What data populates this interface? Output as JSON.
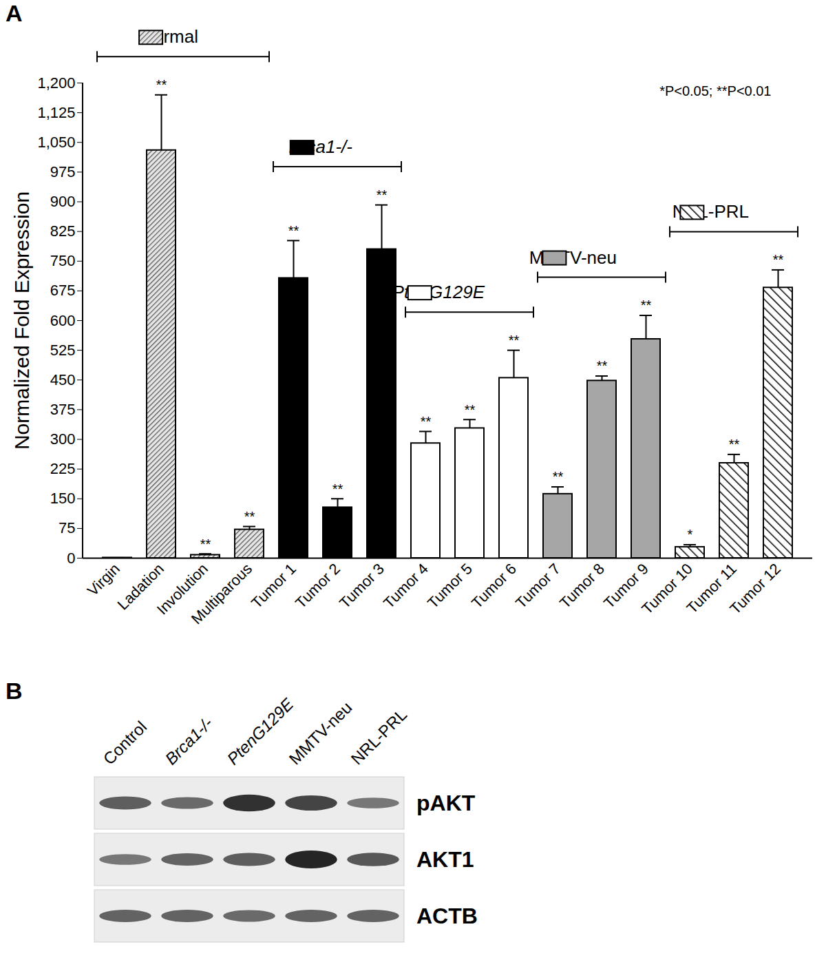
{
  "chart_data": {
    "type": "bar",
    "panel_label": "A",
    "y_label": "Normalized Fold Expression",
    "categories": [
      "Virgin",
      "Ladation",
      "Involution",
      "Multiparous",
      "Tumor 1",
      "Tumor 2",
      "Tumor 3",
      "Tumor 4",
      "Tumor 5",
      "Tumor 6",
      "Tumor 7",
      "Tumor 8",
      "Tumor 9",
      "Tumor 10",
      "Tumor 11",
      "Tumor 12"
    ],
    "values": [
      1,
      1030,
      8,
      72,
      707,
      128,
      780,
      290,
      328,
      455,
      162,
      448,
      553,
      28,
      240,
      683
    ],
    "errors": [
      0,
      140,
      3,
      8,
      95,
      22,
      112,
      30,
      22,
      70,
      18,
      12,
      60,
      6,
      22,
      45
    ],
    "significance": [
      null,
      "**",
      "**",
      "**",
      "**",
      "**",
      "**",
      "**",
      "**",
      "**",
      "**",
      "**",
      "**",
      "*",
      "**",
      "**"
    ],
    "groups": [
      {
        "name": "Normal",
        "color": "#555555",
        "members": [
          "Virgin",
          "Ladation",
          "Involution",
          "Multiparous"
        ]
      },
      {
        "name": "Brca1-/-",
        "color": "#000000",
        "members": [
          "Tumor 1",
          "Tumor 2",
          "Tumor 3"
        ]
      },
      {
        "name": "PtenG129E",
        "color": "#ffffff",
        "members": [
          "Tumor 4",
          "Tumor 5",
          "Tumor 6"
        ]
      },
      {
        "name": "MMTV-neu",
        "color": "#a6a6a6",
        "members": [
          "Tumor 7",
          "Tumor 8",
          "Tumor 9"
        ]
      },
      {
        "name": "NRL-PRL",
        "color": "#000000",
        "members": [
          "Tumor 10",
          "Tumor 11",
          "Tumor 12"
        ]
      }
    ],
    "annotations": [
      "*P<0.05; **P<0.01"
    ],
    "ylim": [
      0,
      1200
    ],
    "yticks": [
      0,
      75,
      150,
      225,
      300,
      375,
      450,
      525,
      600,
      675,
      750,
      825,
      900,
      975,
      1050,
      1125,
      1200
    ],
    "grid": false
  },
  "blot": {
    "panel_label": "B",
    "lanes": [
      "Control",
      "Brca1-/-",
      "PtenG129E",
      "MMTV-neu",
      "NRL-PRL"
    ],
    "rows": [
      {
        "label": "pAKT",
        "intensities": [
          0.55,
          0.45,
          0.9,
          0.75,
          0.35
        ]
      },
      {
        "label": "AKT1",
        "intensities": [
          0.35,
          0.5,
          0.55,
          1.0,
          0.6
        ]
      },
      {
        "label": "ACTB",
        "intensities": [
          0.5,
          0.5,
          0.45,
          0.5,
          0.5
        ]
      }
    ]
  }
}
